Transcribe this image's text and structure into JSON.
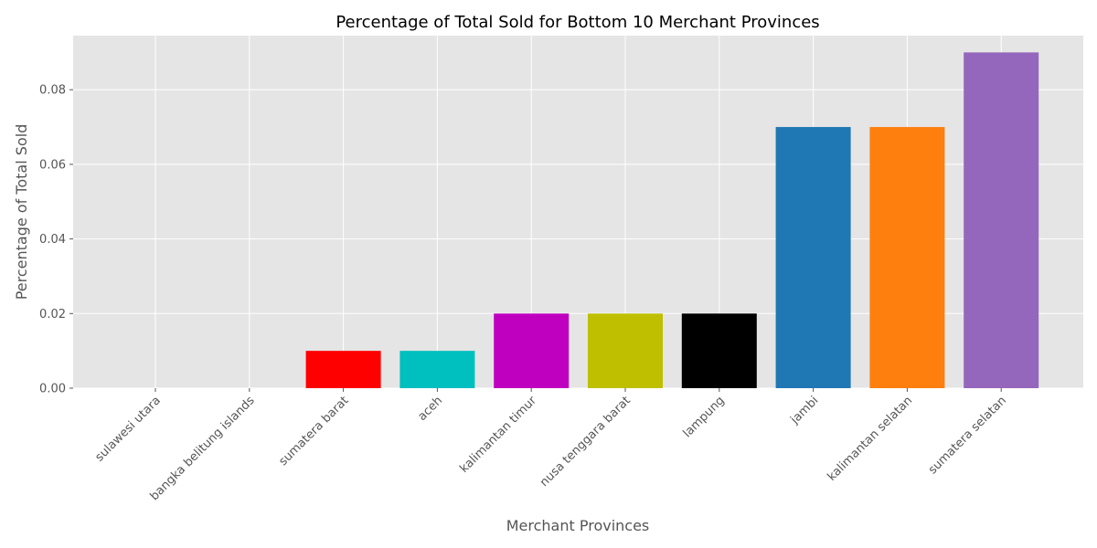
{
  "chart_data": {
    "type": "bar",
    "title": "Percentage of Total Sold for Bottom 10 Merchant Provinces",
    "xlabel": "Merchant Provinces",
    "ylabel": "Percentage of Total Sold",
    "categories": [
      "sulawesi utara",
      "bangka belitung islands",
      "sumatera barat",
      "aceh",
      "kalimantan timur",
      "nusa tenggara barat",
      "lampung",
      "jambi",
      "kalimantan selatan",
      "sumatera selatan"
    ],
    "values": [
      0.0,
      0.0,
      0.01,
      0.01,
      0.02,
      0.02,
      0.02,
      0.07,
      0.07,
      0.09
    ],
    "colors": [
      "#1f77b4",
      "#ff7f0e",
      "#ff0000",
      "#00bfbf",
      "#bf00bf",
      "#bfbf00",
      "#000000",
      "#1f77b4",
      "#ff7f0e",
      "#9467bd"
    ],
    "ylim": [
      0,
      0.0945
    ],
    "yticks": [
      0.0,
      0.02,
      0.04,
      0.06,
      0.08
    ],
    "ytick_labels": [
      "0.00",
      "0.02",
      "0.04",
      "0.06",
      "0.08"
    ],
    "grid": true,
    "background": "#e5e5e5",
    "x_tick_rotation": 45
  }
}
